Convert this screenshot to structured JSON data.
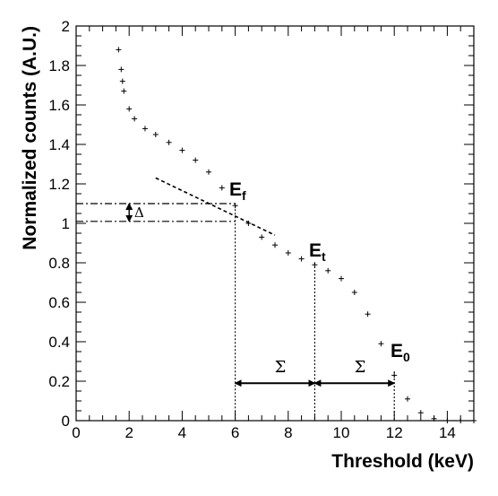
{
  "chart_data": {
    "type": "scatter",
    "xlabel": "Threshold (keV)",
    "ylabel": "Normalized counts (A.U.)",
    "xlim": [
      0,
      15
    ],
    "ylim": [
      0,
      2
    ],
    "x_ticks": [
      "0",
      "2",
      "4",
      "6",
      "8",
      "10",
      "12",
      "14"
    ],
    "y_ticks": [
      "0",
      "0.2",
      "0.4",
      "0.6",
      "0.8",
      "1",
      "1.2",
      "1.4",
      "1.6",
      "1.8",
      "2"
    ],
    "grid": false,
    "legend": "none",
    "marker": "plus",
    "series": [
      {
        "x": [
          1.6,
          1.7,
          1.75,
          1.8,
          2.0,
          2.2,
          2.6,
          3.0,
          3.5,
          4.0,
          4.5,
          5.0,
          5.5,
          6.0,
          6.5,
          7.0,
          7.5,
          8.0,
          8.5,
          9.0,
          9.5,
          10.0,
          10.5,
          11.0,
          11.5,
          12.0,
          12.5,
          13.0,
          13.5,
          14.0,
          14.5,
          15.0
        ],
        "y": [
          1.88,
          1.78,
          1.72,
          1.67,
          1.58,
          1.53,
          1.48,
          1.45,
          1.41,
          1.37,
          1.32,
          1.26,
          1.18,
          1.09,
          1.0,
          0.93,
          0.89,
          0.85,
          0.82,
          0.79,
          0.76,
          0.72,
          0.65,
          0.54,
          0.39,
          0.23,
          0.11,
          0.04,
          0.01,
          0.0,
          0.0,
          0.0
        ]
      }
    ],
    "annotations": {
      "tangent_line": {
        "x1": 3.0,
        "y1": 1.23,
        "x2": 7.5,
        "y2": 0.94
      },
      "delta_lines_y": [
        1.1,
        1.01
      ],
      "delta_line_x_range": [
        0,
        6.0
      ],
      "delta_arrow_x": 2.0,
      "vertical_lines_x": [
        6.0,
        9.0,
        12.0
      ],
      "vertical_lines_top_y": [
        1.09,
        0.8,
        0.25
      ],
      "sigma_arrow_y": 0.19,
      "labels": {
        "ef_main": "E",
        "ef_sub": "f",
        "et_main": "E",
        "et_sub": "t",
        "e0_main": "E",
        "e0_sub": "0",
        "delta": "Δ",
        "sigma_left": "Σ",
        "sigma_right": "Σ"
      }
    }
  }
}
